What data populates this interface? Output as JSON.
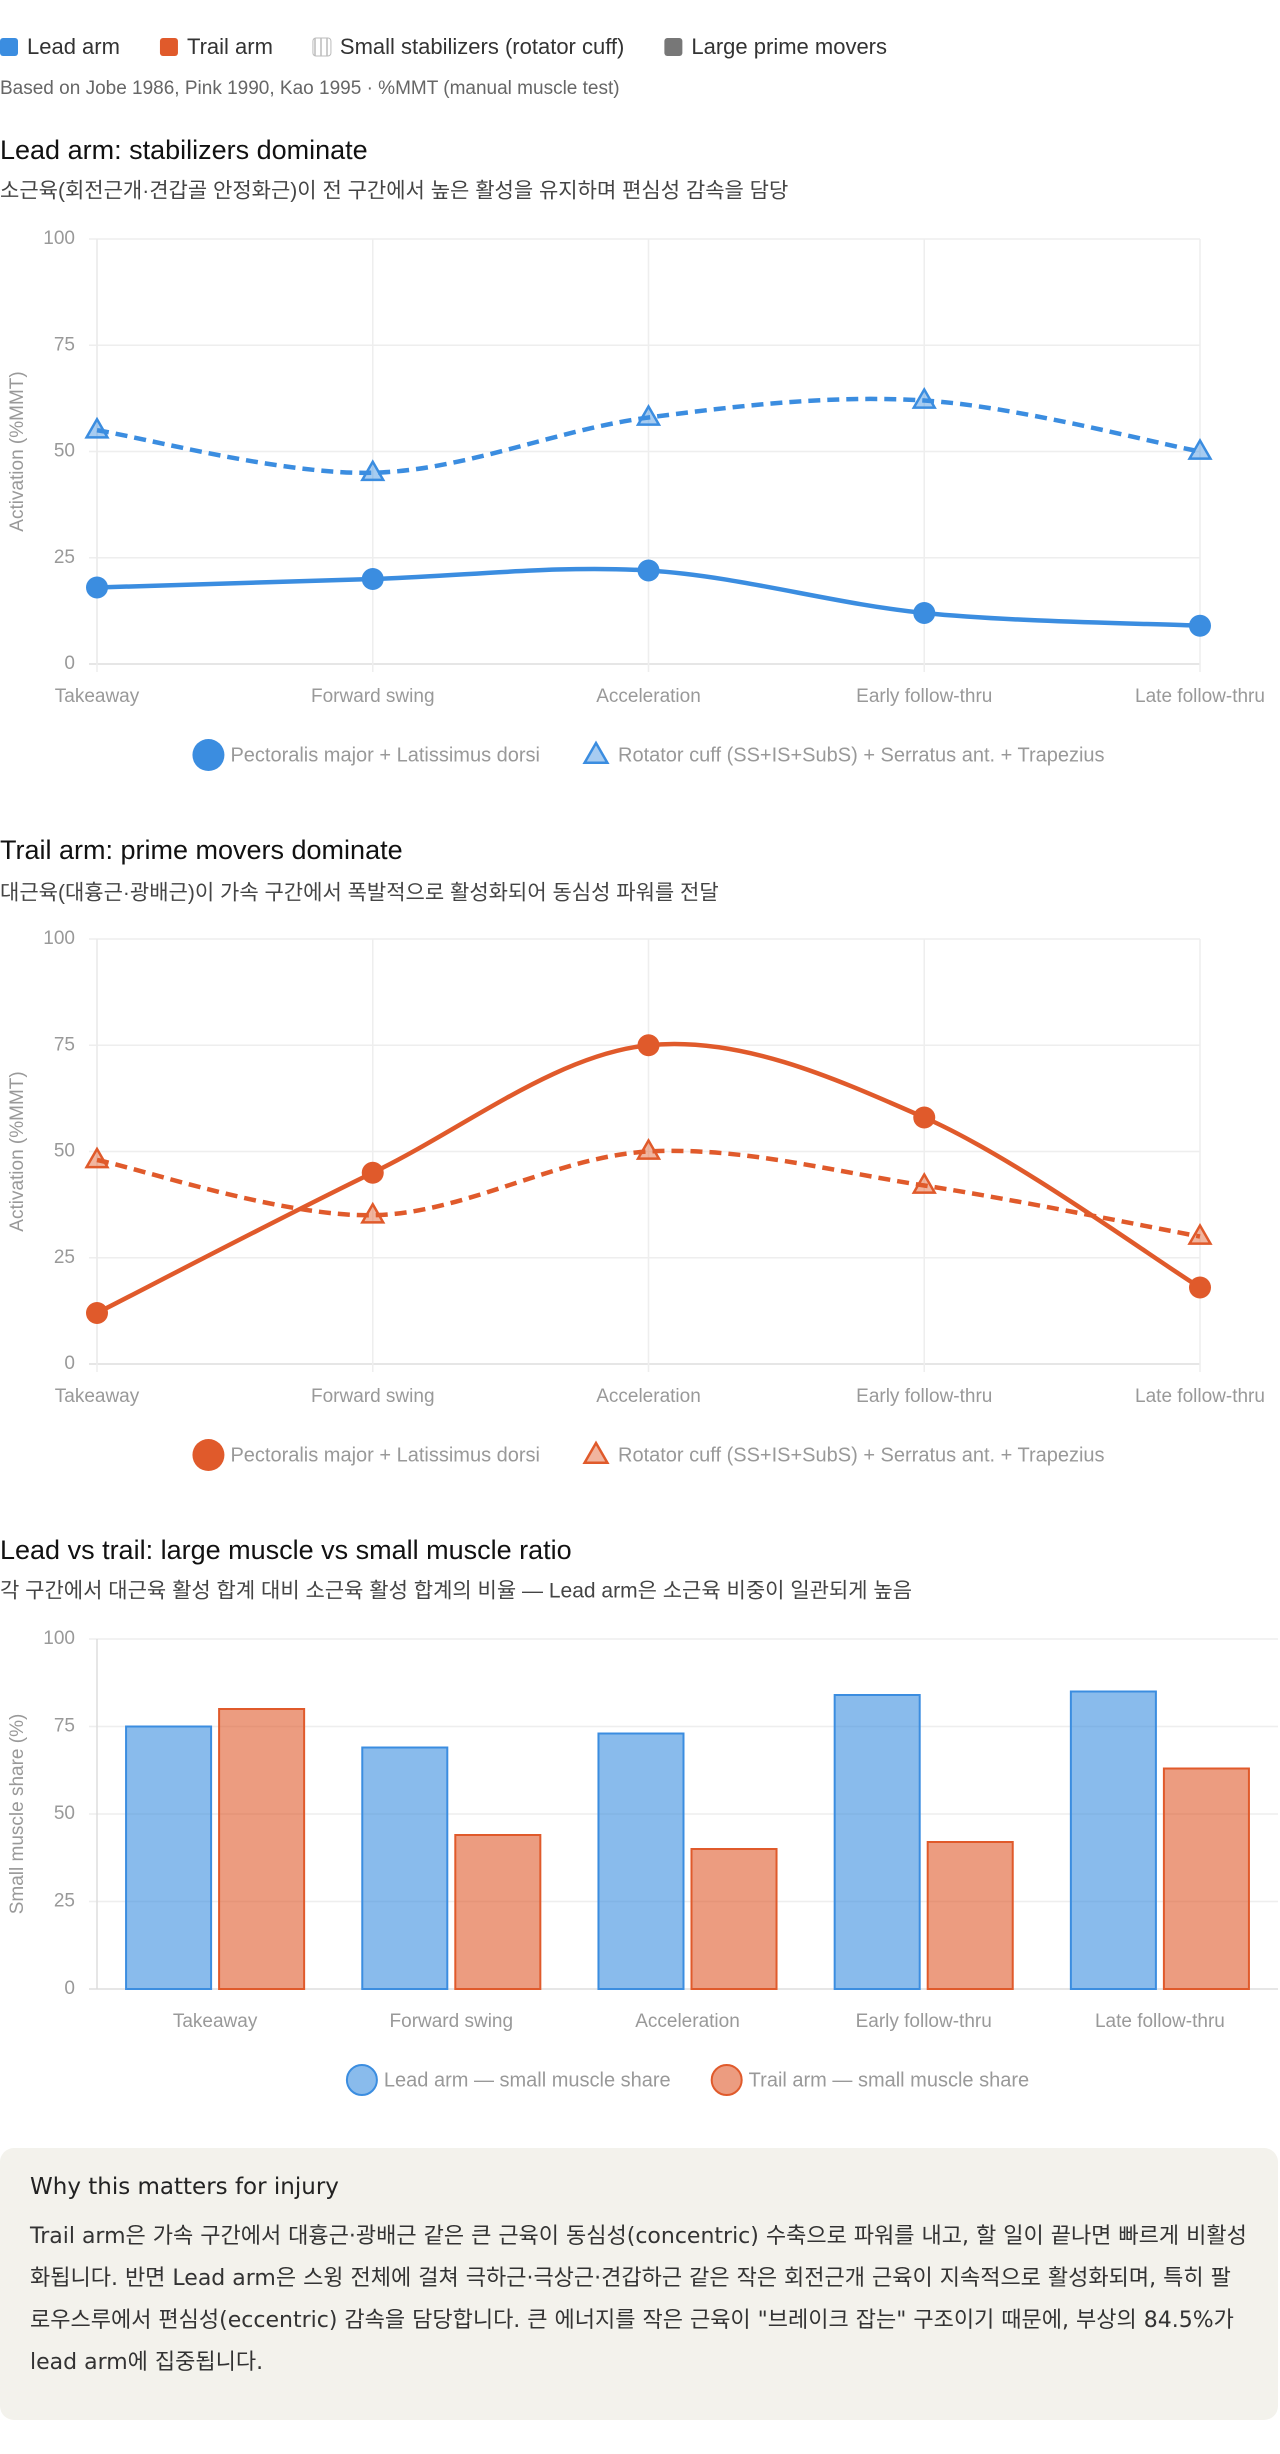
{
  "legend": [
    {
      "name": "Lead arm",
      "color": "#3b8de0",
      "style": "solid"
    },
    {
      "name": "Trail arm",
      "color": "#e05a2b",
      "style": "solid"
    },
    {
      "name": "Small stabilizers (rotator cuff)",
      "color": "#bbbbbb",
      "style": "hatched"
    },
    {
      "name": "Large prime movers",
      "color": "#777777",
      "style": "solid"
    }
  ],
  "note": "Based on Jobe 1986, Pink 1990, Kao 1995 · %MMT (manual muscle test)",
  "chart_data": [
    {
      "type": "line",
      "title": "Lead arm: stabilizers dominate",
      "subtitle": "소근육(회전근개·견갑골 안정화근)이 전 구간에서 높은 활성을 유지하며 편심성 감속을 담당",
      "ylabel": "Activation (%MMT)",
      "categories": [
        "Takeaway",
        "Forward swing",
        "Acceleration",
        "Early follow-thru",
        "Late follow-thru"
      ],
      "series": [
        {
          "name": "Pectoralis major + Latissimus dorsi",
          "color": "#3b8de0",
          "line_style": "solid",
          "marker": "circle",
          "values": [
            18,
            20,
            22,
            12,
            9
          ]
        },
        {
          "name": "Rotator cuff (SS+IS+SubS) + Serratus ant. + Trapezius",
          "color": "#3b8de0",
          "line_style": "dashed",
          "marker": "triangle",
          "values": [
            55,
            45,
            58,
            62,
            50
          ]
        }
      ],
      "ylim": [
        0,
        100
      ],
      "yticks": [
        0,
        25,
        50,
        75,
        100
      ],
      "grid": true
    },
    {
      "type": "line",
      "title": "Trail arm: prime movers dominate",
      "subtitle": "대근육(대흉근·광배근)이 가속 구간에서 폭발적으로 활성화되어 동심성 파워를 전달",
      "ylabel": "Activation (%MMT)",
      "categories": [
        "Takeaway",
        "Forward swing",
        "Acceleration",
        "Early follow-thru",
        "Late follow-thru"
      ],
      "series": [
        {
          "name": "Pectoralis major + Latissimus dorsi",
          "color": "#e05a2b",
          "line_style": "solid",
          "marker": "circle",
          "values": [
            12,
            45,
            75,
            58,
            18
          ]
        },
        {
          "name": "Rotator cuff (SS+IS+SubS) + Serratus ant. + Trapezius",
          "color": "#e05a2b",
          "line_style": "dashed",
          "marker": "triangle",
          "values": [
            48,
            35,
            50,
            42,
            30
          ]
        }
      ],
      "ylim": [
        0,
        100
      ],
      "yticks": [
        0,
        25,
        50,
        75,
        100
      ],
      "grid": true
    },
    {
      "type": "bar",
      "title": "Lead vs trail: large muscle vs small muscle ratio",
      "subtitle": "각 구간에서 대근육 활성 합계 대비 소근육 활성 합계의 비율 — Lead arm은 소근육 비중이 일관되게 높음",
      "ylabel": "Small muscle share (%)",
      "categories": [
        "Takeaway",
        "Forward swing",
        "Acceleration",
        "Early follow-thru",
        "Late follow-thru"
      ],
      "series": [
        {
          "name": "Lead arm — small muscle share",
          "color": "#3b8de0",
          "values": [
            75,
            69,
            73,
            84,
            85
          ]
        },
        {
          "name": "Trail arm — small muscle share",
          "color": "#e05a2b",
          "values": [
            80,
            44,
            40,
            42,
            63
          ]
        }
      ],
      "ylim": [
        0,
        100
      ],
      "yticks": [
        0,
        25,
        50,
        75,
        100
      ],
      "grid": true
    }
  ],
  "callout": {
    "title": "Why this matters for injury",
    "text": "Trail arm은 가속 구간에서 대흉근·광배근 같은 큰 근육이 동심성(concentric) 수축으로 파워를 내고, 할 일이 끝나면 빠르게 비활성화됩니다. 반면 Lead arm은 스윙 전체에 걸쳐 극하근·극상근·견갑하근 같은 작은 회전근개 근육이 지속적으로 활성화되며, 특히 팔로우스루에서 편심성(eccentric) 감속을 담당합니다. 큰 에너지를 작은 근육이 \"브레이크 잡는\" 구조이기 때문에, 부상의 84.5%가 lead arm에 집중됩니다."
  }
}
